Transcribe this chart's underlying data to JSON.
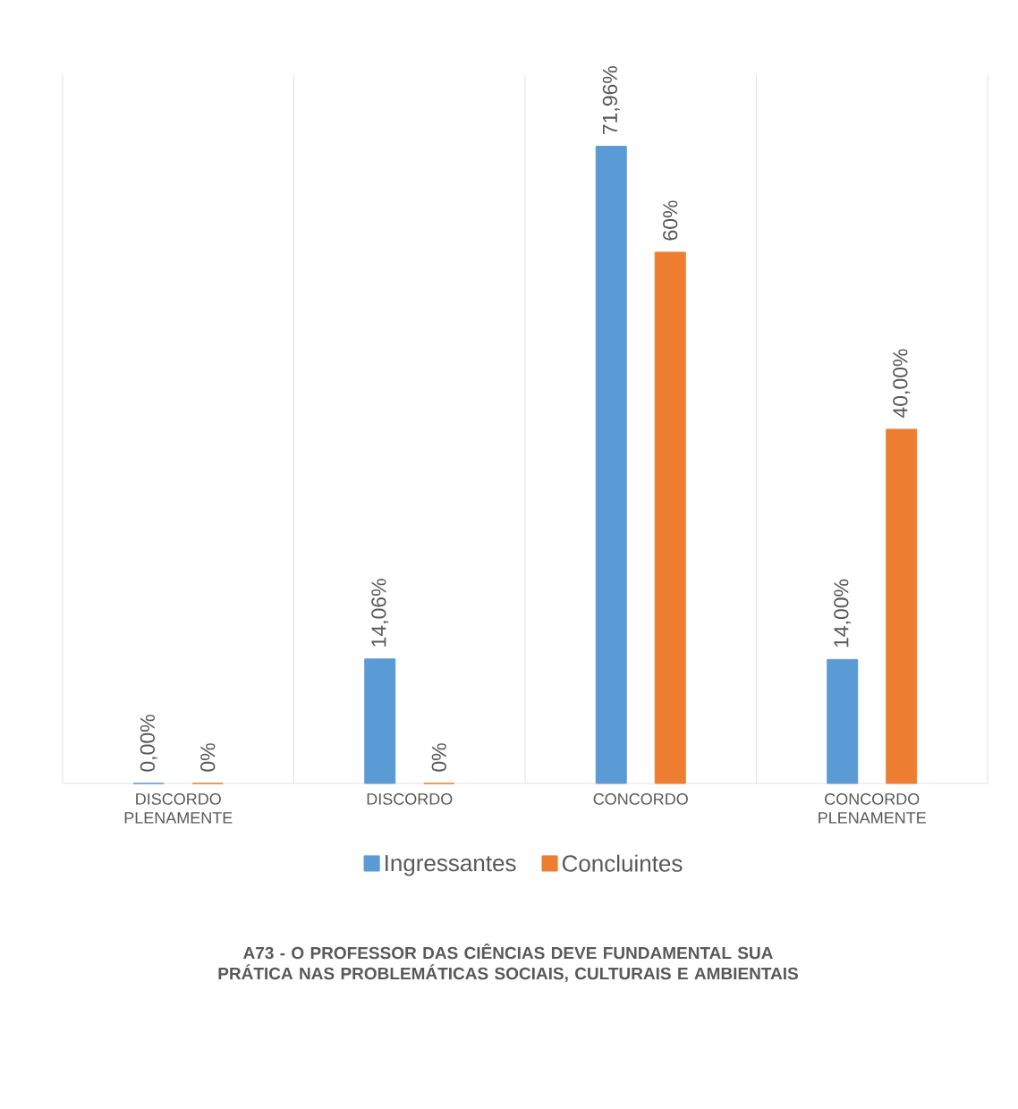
{
  "chart_data": {
    "type": "bar",
    "title": "A73 - O PROFESSOR DAS CIÊNCIAS DEVE FUNDAMENTAL SUA PRÁTICA NAS PROBLEMÁTICAS SOCIAIS, CULTURAIS E AMBIENTAIS",
    "categories": [
      "DISCORDO PLENAMENTE",
      "DISCORDO",
      "CONCORDO",
      "CONCORDO PLENAMENTE"
    ],
    "series": [
      {
        "name": "Ingressantes",
        "color": "#5b9bd5",
        "values": [
          0,
          14.06,
          71.96,
          14.0
        ],
        "value_labels": [
          "0,00%",
          "14,06%",
          "71,96%",
          "14,00%"
        ]
      },
      {
        "name": "Concluintes",
        "color": "#ed7d31",
        "values": [
          0,
          0,
          60,
          40
        ],
        "value_labels": [
          "0%",
          "0%",
          "60%",
          "40,00%"
        ]
      }
    ],
    "ylim": [
      0,
      80
    ],
    "grid": "x",
    "legend": "bottom"
  }
}
